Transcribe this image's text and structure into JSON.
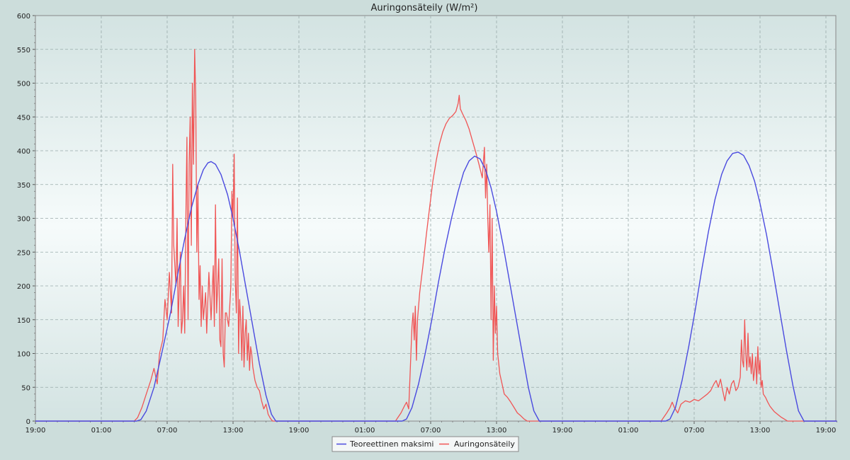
{
  "chart_data": {
    "type": "line",
    "title": "Auringonsäteily (W/m²)",
    "xlabel": "",
    "ylabel": "",
    "ylim": [
      0,
      600
    ],
    "y_ticks": [
      0,
      50,
      100,
      150,
      200,
      250,
      300,
      350,
      400,
      450,
      500,
      550,
      600
    ],
    "x_range_hours": [
      0,
      73
    ],
    "x_ticks": [
      {
        "hour": 0,
        "label": "19:00"
      },
      {
        "hour": 6,
        "label": "01:00"
      },
      {
        "hour": 12,
        "label": "07:00"
      },
      {
        "hour": 18,
        "label": "13:00"
      },
      {
        "hour": 24,
        "label": "19:00"
      },
      {
        "hour": 30,
        "label": "01:00"
      },
      {
        "hour": 36,
        "label": "07:00"
      },
      {
        "hour": 42,
        "label": "13:00"
      },
      {
        "hour": 48,
        "label": "19:00"
      },
      {
        "hour": 54,
        "label": "01:00"
      },
      {
        "hour": 60,
        "label": "07:00"
      },
      {
        "hour": 66,
        "label": "13:00"
      },
      {
        "hour": 72,
        "label": "19:00"
      }
    ],
    "grid": true,
    "legend_position": "bottom-center",
    "series": [
      {
        "name": "Teoreettinen maksimi",
        "color": "#4a4adf",
        "points": [
          [
            0,
            0
          ],
          [
            9.2,
            0
          ],
          [
            9.6,
            2
          ],
          [
            10.1,
            15
          ],
          [
            10.8,
            50
          ],
          [
            11.5,
            100
          ],
          [
            12.3,
            160
          ],
          [
            13.0,
            220
          ],
          [
            13.6,
            270
          ],
          [
            14.2,
            315
          ],
          [
            14.8,
            350
          ],
          [
            15.3,
            372
          ],
          [
            15.7,
            382
          ],
          [
            16.0,
            384
          ],
          [
            16.4,
            380
          ],
          [
            16.9,
            365
          ],
          [
            17.5,
            335
          ],
          [
            18.0,
            300
          ],
          [
            18.6,
            250
          ],
          [
            19.2,
            195
          ],
          [
            19.8,
            140
          ],
          [
            20.4,
            85
          ],
          [
            21.0,
            38
          ],
          [
            21.5,
            10
          ],
          [
            21.9,
            0
          ],
          [
            33.4,
            0
          ],
          [
            33.8,
            3
          ],
          [
            34.3,
            20
          ],
          [
            34.9,
            55
          ],
          [
            35.5,
            100
          ],
          [
            36.1,
            150
          ],
          [
            36.7,
            205
          ],
          [
            37.3,
            255
          ],
          [
            37.9,
            300
          ],
          [
            38.5,
            340
          ],
          [
            39.0,
            368
          ],
          [
            39.5,
            385
          ],
          [
            40.0,
            392
          ],
          [
            40.5,
            388
          ],
          [
            41.0,
            372
          ],
          [
            41.5,
            345
          ],
          [
            42.0,
            310
          ],
          [
            42.6,
            260
          ],
          [
            43.2,
            205
          ],
          [
            43.8,
            150
          ],
          [
            44.4,
            95
          ],
          [
            44.9,
            50
          ],
          [
            45.4,
            15
          ],
          [
            45.9,
            0
          ],
          [
            57.4,
            0
          ],
          [
            57.8,
            3
          ],
          [
            58.3,
            20
          ],
          [
            58.9,
            60
          ],
          [
            59.5,
            110
          ],
          [
            60.1,
            165
          ],
          [
            60.7,
            225
          ],
          [
            61.3,
            280
          ],
          [
            61.9,
            328
          ],
          [
            62.5,
            365
          ],
          [
            63.0,
            385
          ],
          [
            63.5,
            396
          ],
          [
            64.0,
            398
          ],
          [
            64.5,
            393
          ],
          [
            65.0,
            378
          ],
          [
            65.5,
            355
          ],
          [
            66.0,
            322
          ],
          [
            66.6,
            275
          ],
          [
            67.2,
            220
          ],
          [
            67.8,
            162
          ],
          [
            68.4,
            105
          ],
          [
            69.0,
            52
          ],
          [
            69.5,
            15
          ],
          [
            70.0,
            0
          ],
          [
            73,
            0
          ]
        ]
      },
      {
        "name": "Auringonsäteily",
        "color": "#f05555",
        "points": [
          [
            0,
            0
          ],
          [
            9.0,
            0
          ],
          [
            9.3,
            5
          ],
          [
            9.7,
            20
          ],
          [
            10.1,
            40
          ],
          [
            10.5,
            60
          ],
          [
            10.8,
            78
          ],
          [
            11.1,
            55
          ],
          [
            11.3,
            100
          ],
          [
            11.6,
            120
          ],
          [
            11.8,
            180
          ],
          [
            12.0,
            150
          ],
          [
            12.2,
            220
          ],
          [
            12.4,
            160
          ],
          [
            12.5,
            380
          ],
          [
            12.6,
            260
          ],
          [
            12.8,
            200
          ],
          [
            12.9,
            300
          ],
          [
            13.0,
            140
          ],
          [
            13.2,
            250
          ],
          [
            13.3,
            130
          ],
          [
            13.4,
            150
          ],
          [
            13.5,
            200
          ],
          [
            13.6,
            130
          ],
          [
            13.7,
            300
          ],
          [
            13.8,
            420
          ],
          [
            13.9,
            150
          ],
          [
            14.0,
            380
          ],
          [
            14.1,
            450
          ],
          [
            14.2,
            260
          ],
          [
            14.3,
            500
          ],
          [
            14.4,
            380
          ],
          [
            14.5,
            550
          ],
          [
            14.6,
            480
          ],
          [
            14.7,
            250
          ],
          [
            14.8,
            350
          ],
          [
            14.9,
            180
          ],
          [
            15.0,
            230
          ],
          [
            15.1,
            140
          ],
          [
            15.2,
            200
          ],
          [
            15.3,
            150
          ],
          [
            15.5,
            190
          ],
          [
            15.6,
            130
          ],
          [
            15.8,
            220
          ],
          [
            16.0,
            150
          ],
          [
            16.2,
            230
          ],
          [
            16.3,
            140
          ],
          [
            16.4,
            320
          ],
          [
            16.5,
            160
          ],
          [
            16.7,
            240
          ],
          [
            16.8,
            120
          ],
          [
            16.9,
            110
          ],
          [
            17.0,
            240
          ],
          [
            17.1,
            100
          ],
          [
            17.2,
            80
          ],
          [
            17.3,
            160
          ],
          [
            17.4,
            160
          ],
          [
            17.6,
            140
          ],
          [
            17.8,
            200
          ],
          [
            17.9,
            340
          ],
          [
            18.0,
            300
          ],
          [
            18.1,
            395
          ],
          [
            18.2,
            210
          ],
          [
            18.3,
            160
          ],
          [
            18.4,
            330
          ],
          [
            18.5,
            100
          ],
          [
            18.6,
            180
          ],
          [
            18.7,
            150
          ],
          [
            18.8,
            90
          ],
          [
            18.9,
            170
          ],
          [
            19.0,
            80
          ],
          [
            19.1,
            130
          ],
          [
            19.2,
            150
          ],
          [
            19.3,
            90
          ],
          [
            19.4,
            130
          ],
          [
            19.5,
            75
          ],
          [
            19.6,
            110
          ],
          [
            19.7,
            100
          ],
          [
            19.8,
            80
          ],
          [
            20.0,
            60
          ],
          [
            20.2,
            50
          ],
          [
            20.4,
            45
          ],
          [
            20.6,
            30
          ],
          [
            20.8,
            18
          ],
          [
            21.0,
            25
          ],
          [
            21.2,
            10
          ],
          [
            21.4,
            4
          ],
          [
            21.6,
            0
          ],
          [
            32.8,
            0
          ],
          [
            33.0,
            5
          ],
          [
            33.3,
            12
          ],
          [
            33.6,
            22
          ],
          [
            33.8,
            28
          ],
          [
            34.0,
            18
          ],
          [
            34.1,
            60
          ],
          [
            34.2,
            100
          ],
          [
            34.3,
            140
          ],
          [
            34.4,
            160
          ],
          [
            34.5,
            120
          ],
          [
            34.6,
            170
          ],
          [
            34.7,
            90
          ],
          [
            34.8,
            150
          ],
          [
            35.0,
            190
          ],
          [
            35.3,
            230
          ],
          [
            35.6,
            275
          ],
          [
            35.9,
            315
          ],
          [
            36.2,
            355
          ],
          [
            36.5,
            385
          ],
          [
            36.8,
            410
          ],
          [
            37.1,
            428
          ],
          [
            37.4,
            440
          ],
          [
            37.7,
            448
          ],
          [
            38.0,
            452
          ],
          [
            38.3,
            458
          ],
          [
            38.5,
            470
          ],
          [
            38.6,
            482
          ],
          [
            38.7,
            462
          ],
          [
            38.9,
            455
          ],
          [
            39.2,
            445
          ],
          [
            39.5,
            432
          ],
          [
            39.8,
            415
          ],
          [
            40.1,
            398
          ],
          [
            40.4,
            380
          ],
          [
            40.7,
            360
          ],
          [
            40.9,
            405
          ],
          [
            41.0,
            330
          ],
          [
            41.1,
            380
          ],
          [
            41.2,
            300
          ],
          [
            41.3,
            250
          ],
          [
            41.4,
            320
          ],
          [
            41.5,
            150
          ],
          [
            41.6,
            300
          ],
          [
            41.7,
            90
          ],
          [
            41.8,
            200
          ],
          [
            41.9,
            130
          ],
          [
            42.0,
            170
          ],
          [
            42.1,
            100
          ],
          [
            42.3,
            70
          ],
          [
            42.5,
            55
          ],
          [
            42.7,
            40
          ],
          [
            43.0,
            35
          ],
          [
            43.3,
            28
          ],
          [
            43.6,
            20
          ],
          [
            43.9,
            12
          ],
          [
            44.2,
            8
          ],
          [
            44.5,
            3
          ],
          [
            44.8,
            0
          ],
          [
            57.0,
            0
          ],
          [
            57.2,
            5
          ],
          [
            57.5,
            12
          ],
          [
            57.8,
            20
          ],
          [
            58.0,
            28
          ],
          [
            58.2,
            20
          ],
          [
            58.5,
            12
          ],
          [
            58.8,
            25
          ],
          [
            59.2,
            30
          ],
          [
            59.6,
            28
          ],
          [
            60.0,
            32
          ],
          [
            60.4,
            30
          ],
          [
            60.8,
            35
          ],
          [
            61.2,
            40
          ],
          [
            61.5,
            45
          ],
          [
            61.8,
            55
          ],
          [
            62.0,
            60
          ],
          [
            62.2,
            50
          ],
          [
            62.4,
            62
          ],
          [
            62.6,
            45
          ],
          [
            62.8,
            30
          ],
          [
            63.0,
            50
          ],
          [
            63.2,
            40
          ],
          [
            63.4,
            55
          ],
          [
            63.6,
            60
          ],
          [
            63.8,
            45
          ],
          [
            64.0,
            50
          ],
          [
            64.2,
            65
          ],
          [
            64.3,
            120
          ],
          [
            64.4,
            90
          ],
          [
            64.5,
            80
          ],
          [
            64.6,
            150
          ],
          [
            64.7,
            100
          ],
          [
            64.8,
            75
          ],
          [
            64.9,
            130
          ],
          [
            65.0,
            80
          ],
          [
            65.1,
            95
          ],
          [
            65.2,
            70
          ],
          [
            65.3,
            100
          ],
          [
            65.4,
            60
          ],
          [
            65.5,
            75
          ],
          [
            65.6,
            95
          ],
          [
            65.7,
            55
          ],
          [
            65.8,
            110
          ],
          [
            65.9,
            70
          ],
          [
            66.0,
            90
          ],
          [
            66.1,
            50
          ],
          [
            66.2,
            60
          ],
          [
            66.3,
            40
          ],
          [
            66.5,
            35
          ],
          [
            66.7,
            28
          ],
          [
            66.9,
            22
          ],
          [
            67.1,
            18
          ],
          [
            67.3,
            14
          ],
          [
            67.6,
            10
          ],
          [
            67.9,
            6
          ],
          [
            68.2,
            3
          ],
          [
            68.5,
            0
          ],
          [
            73,
            0
          ]
        ]
      }
    ]
  }
}
